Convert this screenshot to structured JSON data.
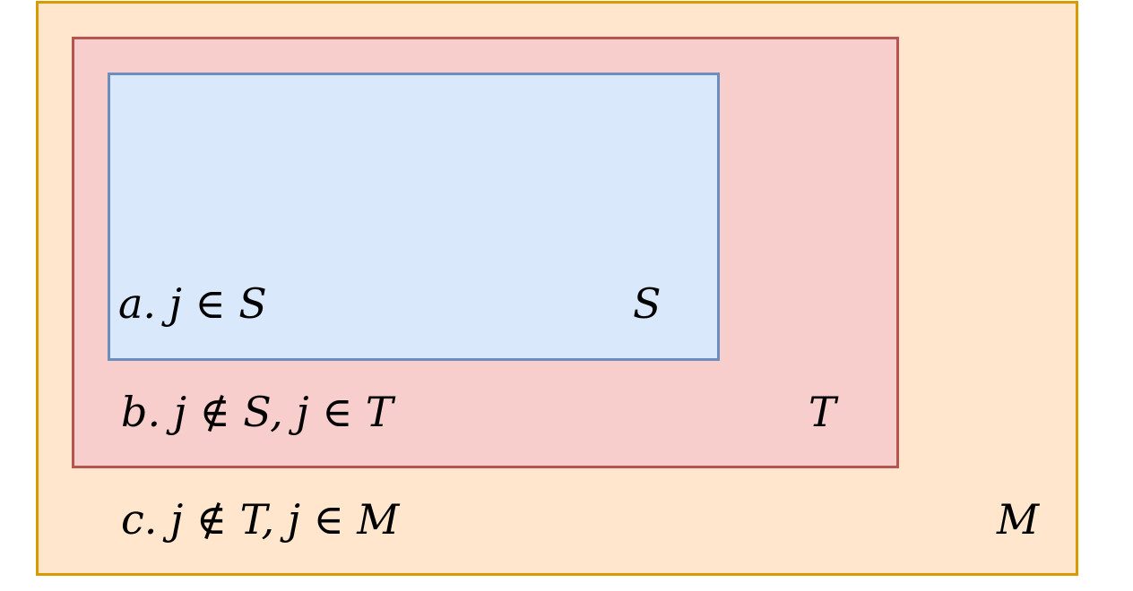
{
  "sets": {
    "m": {
      "label": "M",
      "region_text": "c. j ∉ T, j ∈ M",
      "fill": "#ffe6cc",
      "stroke": "#d79b00"
    },
    "t": {
      "label": "T",
      "region_text": "b. j ∉ S, j ∈ T",
      "fill": "#f8cecc",
      "stroke": "#b85450"
    },
    "s": {
      "label": "S",
      "region_text": "a. j ∈ S",
      "fill": "#dae8fc",
      "stroke": "#6c8ebf"
    }
  }
}
